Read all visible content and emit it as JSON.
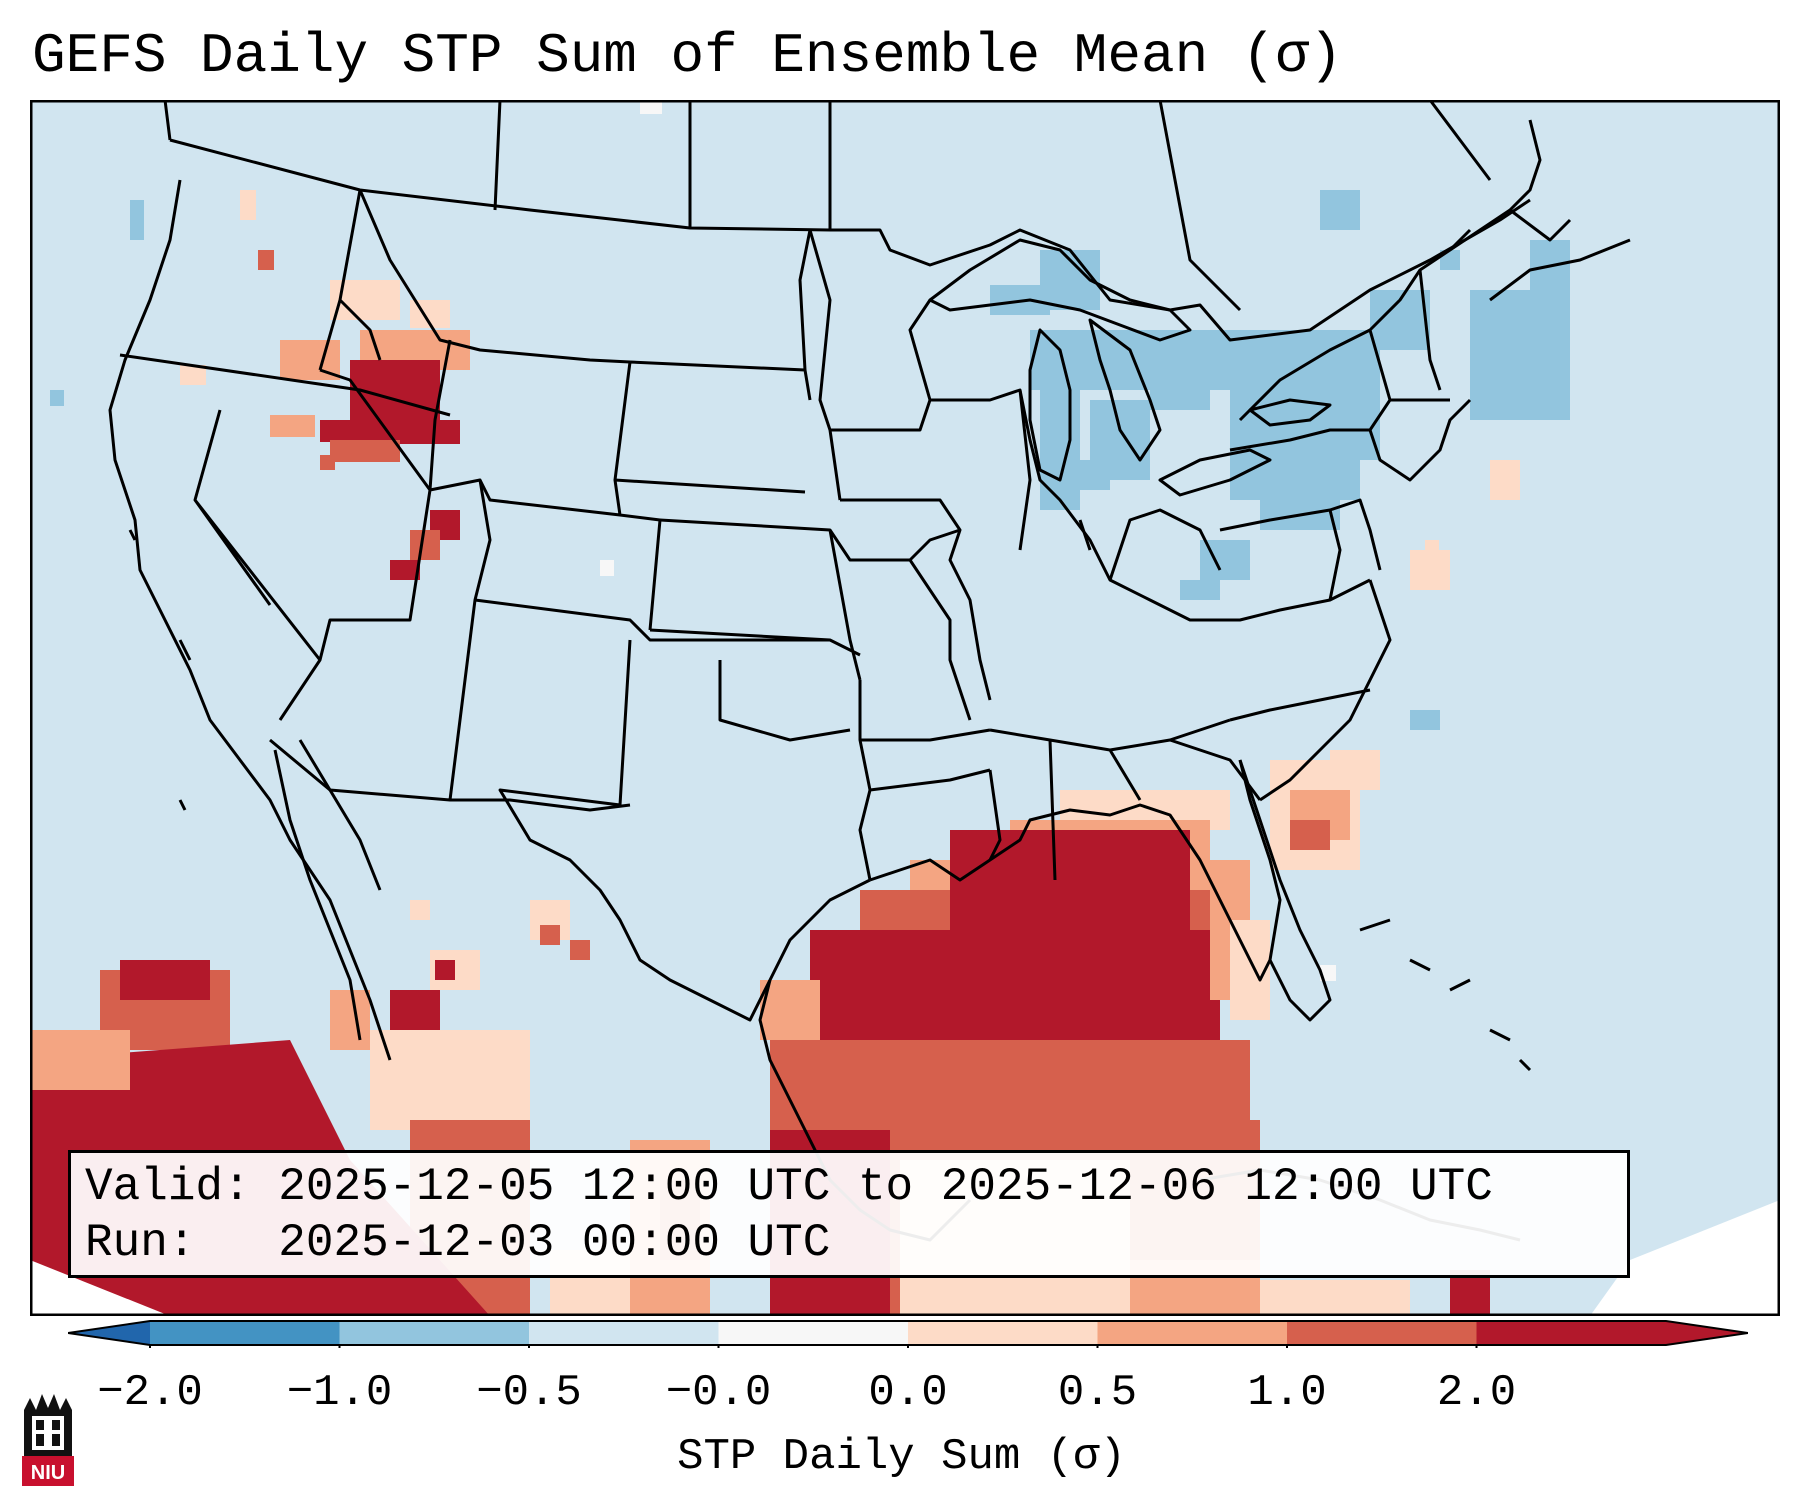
{
  "title": "GEFS Daily STP Sum of Ensemble Mean (σ)",
  "info": {
    "valid_label": "Valid:",
    "valid_value": "2025-12-05 12:00 UTC to 2025-12-06 12:00 UTC",
    "run_label": "Run:",
    "run_value": "2025-12-03 00:00 UTC"
  },
  "colorbar": {
    "label": "STP Daily Sum (σ)",
    "ticks": [
      "−2.0",
      "−1.0",
      "−0.5",
      "−0.0",
      "0.0",
      "0.5",
      "1.0",
      "2.0"
    ],
    "colors": [
      "#4393c3",
      "#92c5de",
      "#d1e5f0",
      "#f7f7f7",
      "#fddbc7",
      "#f4a582",
      "#d6604d",
      "#b2182b"
    ],
    "extend_low_color": "#2166ac",
    "extend_high_color": "#b2182b"
  },
  "logo": {
    "text": "NIU",
    "color": "#c8102e"
  },
  "colors": {
    "background": "#d1e5f0",
    "light_blue": "#92c5de",
    "light_red": "#fddbc7",
    "mid_red": "#f4a582",
    "red": "#d6604d",
    "dark_red": "#b2182b",
    "white": "#f7f7f7"
  },
  "map_features": [
    "coastline",
    "state-borders",
    "country-borders",
    "great-lakes",
    "gulf-of-mexico",
    "atlantic-ocean",
    "pacific-ocean",
    "mexico",
    "cuba",
    "bahamas"
  ]
}
